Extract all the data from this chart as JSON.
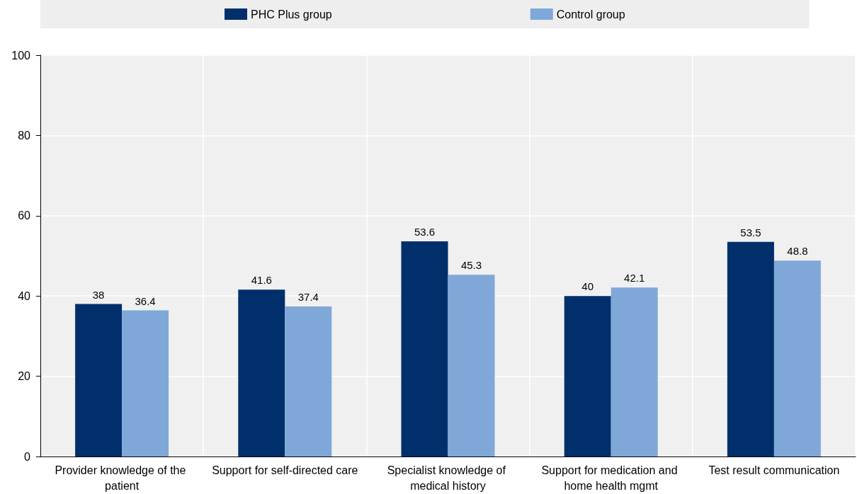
{
  "chart_data": {
    "type": "bar",
    "categories": [
      "Provider knowledge of the patient",
      "Support for self-directed care",
      "Specialist knowledge of medical history",
      "Support for medication and home health mgmt",
      "Test result communication"
    ],
    "series": [
      {
        "name": "PHC Plus group",
        "color": "#002f6c",
        "values": [
          38,
          41.6,
          53.6,
          40,
          53.5
        ]
      },
      {
        "name": "Control group",
        "color": "#7fa8d9",
        "values": [
          36.4,
          37.4,
          45.3,
          42.1,
          48.8
        ]
      }
    ],
    "ylim": [
      0,
      100
    ],
    "yticks": [
      0,
      20,
      40,
      60,
      80,
      100
    ],
    "grid": true,
    "legend": "top",
    "data_labels": true
  }
}
